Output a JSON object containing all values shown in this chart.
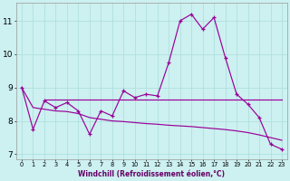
{
  "xlabel": "Windchill (Refroidissement éolien,°C)",
  "background_color": "#cdf0f0",
  "grid_color": "#aadddd",
  "line_color": "#990099",
  "xlim_min": -0.5,
  "xlim_max": 23.5,
  "ylim_min": 6.85,
  "ylim_max": 11.55,
  "yticks": [
    7,
    8,
    9,
    10,
    11
  ],
  "xticks": [
    0,
    1,
    2,
    3,
    4,
    5,
    6,
    7,
    8,
    9,
    10,
    11,
    12,
    13,
    14,
    15,
    16,
    17,
    18,
    19,
    20,
    21,
    22,
    23
  ],
  "main_x": [
    0,
    1,
    2,
    3,
    4,
    5,
    6,
    7,
    8,
    9,
    10,
    11,
    12,
    13,
    14,
    15,
    16,
    17,
    18,
    19,
    20,
    21,
    22,
    23
  ],
  "main_y": [
    9.0,
    7.75,
    8.6,
    8.4,
    8.55,
    8.3,
    7.6,
    8.3,
    8.15,
    8.9,
    8.7,
    8.8,
    8.75,
    9.75,
    11.0,
    11.2,
    10.75,
    11.1,
    9.9,
    8.8,
    8.5,
    8.1,
    7.3,
    7.15
  ],
  "flat_x": [
    2,
    3,
    4,
    5,
    6,
    7,
    8,
    9,
    10,
    11,
    12,
    13,
    14,
    15,
    16,
    17,
    18,
    19,
    20,
    21,
    22,
    23
  ],
  "flat_y": [
    8.65,
    8.65,
    8.65,
    8.65,
    8.65,
    8.65,
    8.65,
    8.65,
    8.65,
    8.65,
    8.65,
    8.65,
    8.65,
    8.65,
    8.65,
    8.65,
    8.65,
    8.65,
    8.65,
    8.65,
    8.65,
    8.65
  ],
  "slope_x": [
    0,
    1,
    2,
    3,
    4,
    5,
    6,
    7,
    8,
    9,
    10,
    11,
    12,
    13,
    14,
    15,
    16,
    17,
    18,
    19,
    20,
    21,
    22,
    23
  ],
  "slope_y": [
    9.0,
    8.4,
    8.35,
    8.3,
    8.28,
    8.22,
    8.1,
    8.05,
    8.0,
    7.98,
    7.95,
    7.92,
    7.9,
    7.87,
    7.85,
    7.83,
    7.8,
    7.77,
    7.74,
    7.7,
    7.65,
    7.58,
    7.5,
    7.42
  ]
}
